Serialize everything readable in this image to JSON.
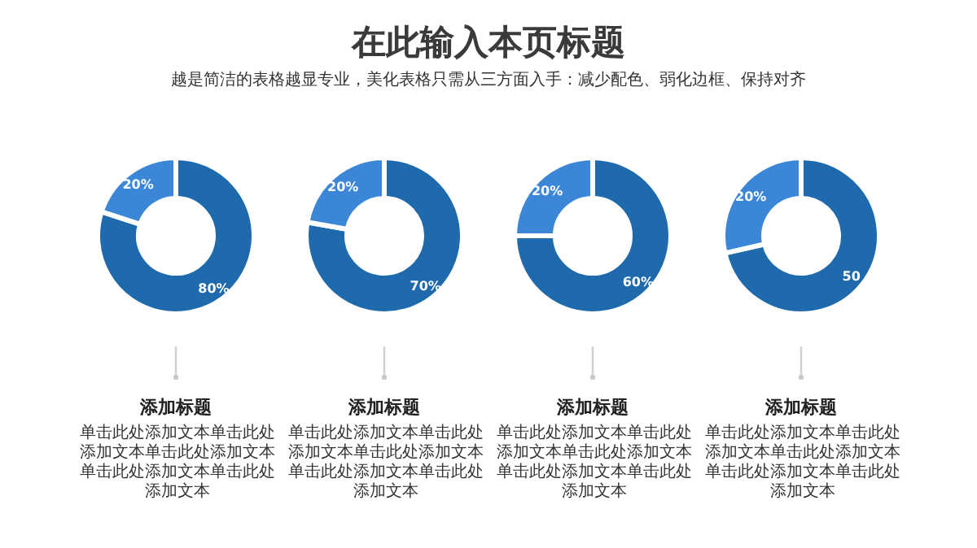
{
  "chart_data": [
    {
      "type": "other",
      "title": "在此输入本页标题",
      "subtitle": "越是简洁的表格越显专业，美化表格只需从三方面入手：减少配色、弱化边框、保持对齐"
    },
    {
      "type": "donut",
      "title": "添加标题",
      "categories": [
        null,
        null
      ],
      "values": [
        80,
        20
      ],
      "colors": [
        "#1f69ad",
        "#3b86d6"
      ],
      "value_labels": [
        "80%",
        "20%"
      ],
      "annotations": [
        "单击此处添加文本单击此处添加文本单击此处添加文本单击此处添加文本单击此处添加文本"
      ]
    },
    {
      "type": "donut",
      "title": "添加标题",
      "categories": [
        null,
        null
      ],
      "values": [
        70,
        20
      ],
      "colors": [
        "#1f69ad",
        "#3b86d6"
      ],
      "value_labels": [
        "70%",
        "20%"
      ],
      "annotations": [
        "单击此处添加文本单击此处添加文本单击此处添加文本单击此处添加文本单击此处添加文本"
      ]
    },
    {
      "type": "donut",
      "title": "添加标题",
      "categories": [
        null,
        null
      ],
      "values": [
        60,
        20
      ],
      "colors": [
        "#1f69ad",
        "#3b86d6"
      ],
      "value_labels": [
        "60%",
        "20%"
      ],
      "annotations": [
        "单击此处添加文本单击此处添加文本单击此处添加文本单击此处添加文本单击此处添加文本"
      ]
    },
    {
      "type": "donut",
      "title": "添加标题",
      "categories": [
        null,
        null
      ],
      "values": [
        50,
        20
      ],
      "colors": [
        "#1f69ad",
        "#3b86d6"
      ],
      "value_labels": [
        "50",
        "20%"
      ],
      "annotations": [
        "单击此处添加文本单击此处添加文本单击此处添加文本单击此处添加文本单击此处添加文本"
      ]
    }
  ]
}
